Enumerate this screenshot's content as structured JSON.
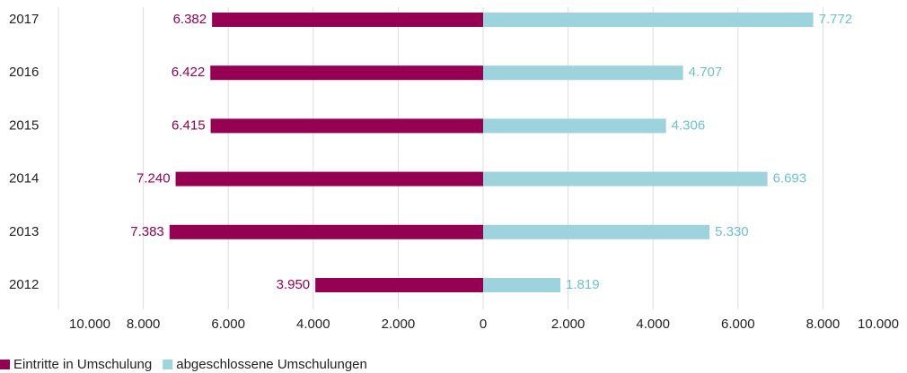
{
  "chart_data": {
    "type": "butterfly",
    "categories": [
      "2017",
      "2016",
      "2015",
      "2014",
      "2013",
      "2012"
    ],
    "series": [
      {
        "name": "Eintritte in Umschulung",
        "color": "#950052",
        "side": "left",
        "values": [
          6382,
          6422,
          6415,
          7240,
          7383,
          3950
        ],
        "value_labels": [
          "6.382",
          "6.422",
          "6.415",
          "7.240",
          "7.383",
          "3.950"
        ]
      },
      {
        "name": "abgeschlossene Umschulungen",
        "color": "#9dd3dc",
        "side": "right",
        "values": [
          7772,
          4707,
          4306,
          6693,
          5330,
          1819
        ],
        "value_labels": [
          "7.772",
          "4.707",
          "4.306",
          "6.693",
          "5.330",
          "1.819"
        ]
      }
    ],
    "xlim_left": [
      10000,
      0
    ],
    "xlim_right": [
      0,
      10000
    ],
    "xticks_left": [
      {
        "value": 10000,
        "label": "10.000"
      },
      {
        "value": 8000,
        "label": "8.000"
      },
      {
        "value": 6000,
        "label": "6.000"
      },
      {
        "value": 4000,
        "label": "4.000"
      },
      {
        "value": 2000,
        "label": "2.000"
      },
      0
    ],
    "xticks_right": [
      {
        "value": 2000,
        "label": "2.000"
      },
      {
        "value": 4000,
        "label": "4.000"
      },
      {
        "value": 6000,
        "label": "6.000"
      },
      {
        "value": 8000,
        "label": "8.000"
      },
      {
        "value": 10000,
        "label": "10.000"
      }
    ],
    "grid": true,
    "legend": "bottom-left"
  }
}
